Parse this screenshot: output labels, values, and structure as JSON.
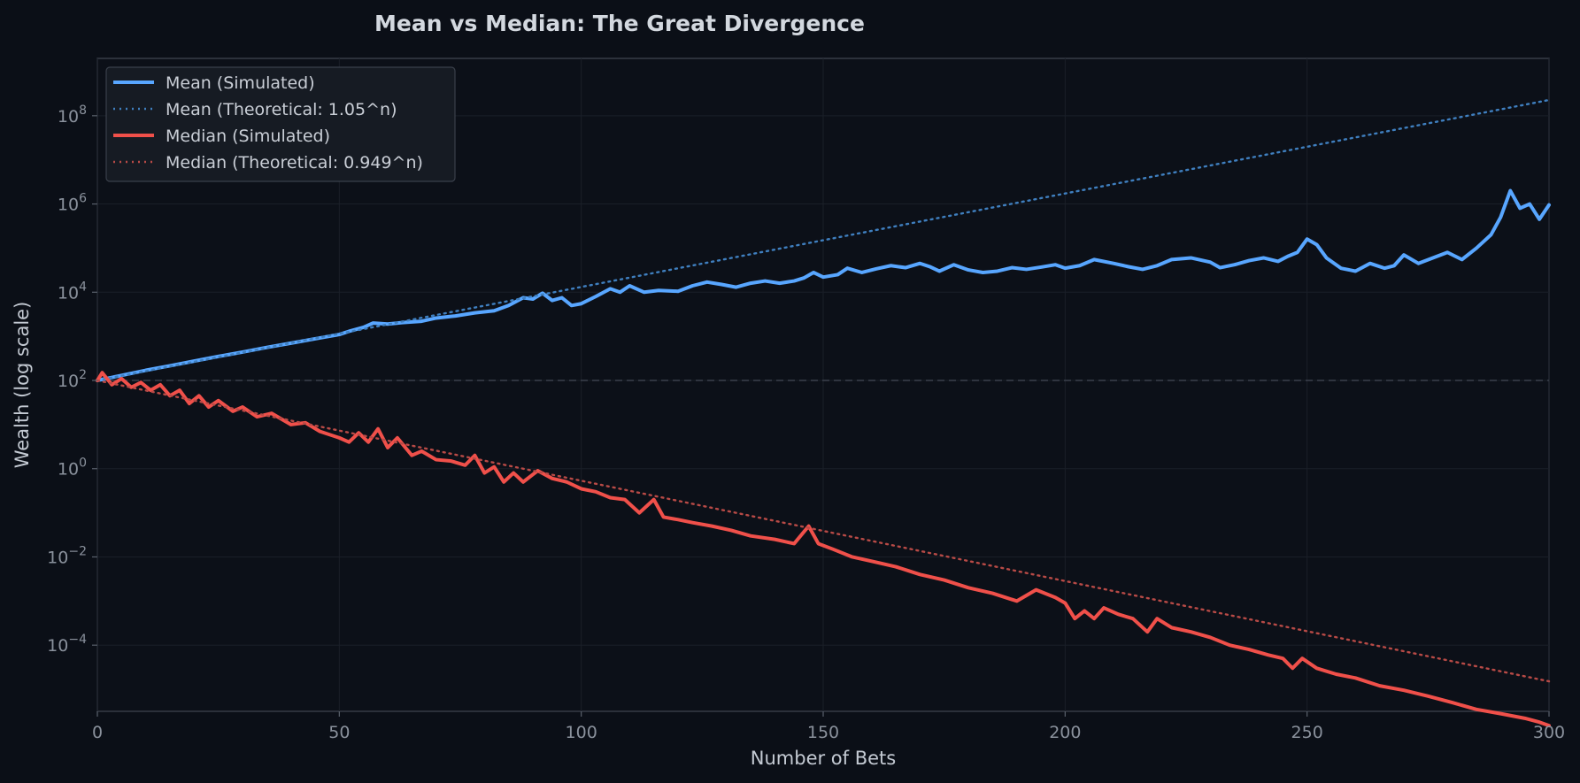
{
  "chart_data": {
    "type": "line",
    "title": "Mean vs Median: The Great Divergence",
    "xlabel": "Number of Bets",
    "ylabel": "Wealth (log scale)",
    "xlim": [
      0,
      300
    ],
    "ylim_log10": [
      -5.5,
      9.3
    ],
    "y_scale": "log",
    "x_ticks": [
      0,
      50,
      100,
      150,
      200,
      250,
      300
    ],
    "y_ticks": [
      {
        "base": "10",
        "exp": "−4",
        "log10": -4
      },
      {
        "base": "10",
        "exp": "−2",
        "log10": -2
      },
      {
        "base": "10",
        "exp": "0",
        "log10": 0
      },
      {
        "base": "10",
        "exp": "2",
        "log10": 2
      },
      {
        "base": "10",
        "exp": "4",
        "log10": 4
      },
      {
        "base": "10",
        "exp": "6",
        "log10": 6
      },
      {
        "base": "10",
        "exp": "8",
        "log10": 8
      }
    ],
    "grid": true,
    "legend_position": "top-left",
    "reference_line": {
      "y": 100,
      "color": "#3b414c",
      "style": "dashed"
    },
    "series": [
      {
        "name": "Mean (Simulated)",
        "color": "#58a6ff",
        "style": "solid",
        "points": [
          [
            0,
            100
          ],
          [
            5,
            130
          ],
          [
            10,
            170
          ],
          [
            15,
            215
          ],
          [
            20,
            275
          ],
          [
            25,
            350
          ],
          [
            30,
            440
          ],
          [
            35,
            560
          ],
          [
            40,
            700
          ],
          [
            45,
            880
          ],
          [
            50,
            1100
          ],
          [
            52,
            1300
          ],
          [
            55,
            1600
          ],
          [
            57,
            2000
          ],
          [
            60,
            1900
          ],
          [
            63,
            2050
          ],
          [
            67,
            2200
          ],
          [
            70,
            2600
          ],
          [
            74,
            2900
          ],
          [
            78,
            3400
          ],
          [
            82,
            3800
          ],
          [
            85,
            5000
          ],
          [
            88,
            7500
          ],
          [
            90,
            7000
          ],
          [
            92,
            9500
          ],
          [
            94,
            6500
          ],
          [
            96,
            7500
          ],
          [
            98,
            5000
          ],
          [
            100,
            5500
          ],
          [
            103,
            8000
          ],
          [
            106,
            12000
          ],
          [
            108,
            10000
          ],
          [
            110,
            14000
          ],
          [
            113,
            10000
          ],
          [
            116,
            11000
          ],
          [
            120,
            10500
          ],
          [
            123,
            14000
          ],
          [
            126,
            17000
          ],
          [
            129,
            15000
          ],
          [
            132,
            13000
          ],
          [
            135,
            16000
          ],
          [
            138,
            18000
          ],
          [
            141,
            16000
          ],
          [
            144,
            18000
          ],
          [
            146,
            21000
          ],
          [
            148,
            28000
          ],
          [
            150,
            22000
          ],
          [
            153,
            25000
          ],
          [
            155,
            35000
          ],
          [
            158,
            28000
          ],
          [
            161,
            34000
          ],
          [
            164,
            40000
          ],
          [
            167,
            36000
          ],
          [
            170,
            45000
          ],
          [
            172,
            38000
          ],
          [
            174,
            30000
          ],
          [
            177,
            42000
          ],
          [
            180,
            32000
          ],
          [
            183,
            28000
          ],
          [
            186,
            30000
          ],
          [
            189,
            36000
          ],
          [
            192,
            33000
          ],
          [
            195,
            37000
          ],
          [
            198,
            42000
          ],
          [
            200,
            35000
          ],
          [
            203,
            40000
          ],
          [
            206,
            55000
          ],
          [
            210,
            45000
          ],
          [
            213,
            38000
          ],
          [
            216,
            33000
          ],
          [
            219,
            40000
          ],
          [
            222,
            55000
          ],
          [
            226,
            60000
          ],
          [
            230,
            48000
          ],
          [
            232,
            36000
          ],
          [
            235,
            42000
          ],
          [
            238,
            52000
          ],
          [
            241,
            60000
          ],
          [
            244,
            50000
          ],
          [
            246,
            65000
          ],
          [
            248,
            80000
          ],
          [
            250,
            160000
          ],
          [
            252,
            120000
          ],
          [
            254,
            60000
          ],
          [
            257,
            35000
          ],
          [
            260,
            30000
          ],
          [
            263,
            45000
          ],
          [
            266,
            35000
          ],
          [
            268,
            40000
          ],
          [
            270,
            70000
          ],
          [
            273,
            45000
          ],
          [
            276,
            60000
          ],
          [
            279,
            80000
          ],
          [
            282,
            55000
          ],
          [
            285,
            100000
          ],
          [
            288,
            200000
          ],
          [
            290,
            500000
          ],
          [
            292,
            2000000
          ],
          [
            294,
            800000
          ],
          [
            296,
            1000000
          ],
          [
            298,
            450000
          ],
          [
            300,
            950000
          ]
        ]
      },
      {
        "name": "Mean (Theoretical: 1.05^n)",
        "color": "#3f7fbf",
        "style": "dotted",
        "rate": 1.05
      },
      {
        "name": "Median (Simulated)",
        "color": "#f0504a",
        "style": "solid",
        "points": [
          [
            0,
            100
          ],
          [
            1,
            150
          ],
          [
            3,
            80
          ],
          [
            5,
            110
          ],
          [
            7,
            70
          ],
          [
            9,
            90
          ],
          [
            11,
            60
          ],
          [
            13,
            80
          ],
          [
            15,
            45
          ],
          [
            17,
            60
          ],
          [
            19,
            30
          ],
          [
            21,
            45
          ],
          [
            23,
            25
          ],
          [
            25,
            35
          ],
          [
            28,
            20
          ],
          [
            30,
            25
          ],
          [
            33,
            15
          ],
          [
            36,
            18
          ],
          [
            40,
            10
          ],
          [
            43,
            11
          ],
          [
            46,
            7
          ],
          [
            50,
            5
          ],
          [
            52,
            4
          ],
          [
            54,
            6.5
          ],
          [
            56,
            4
          ],
          [
            58,
            8
          ],
          [
            60,
            3
          ],
          [
            62,
            5
          ],
          [
            65,
            2
          ],
          [
            67,
            2.5
          ],
          [
            70,
            1.6
          ],
          [
            73,
            1.5
          ],
          [
            76,
            1.2
          ],
          [
            78,
            2
          ],
          [
            80,
            0.8
          ],
          [
            82,
            1.1
          ],
          [
            84,
            0.5
          ],
          [
            86,
            0.8
          ],
          [
            88,
            0.5
          ],
          [
            91,
            0.9
          ],
          [
            94,
            0.6
          ],
          [
            97,
            0.5
          ],
          [
            100,
            0.35
          ],
          [
            103,
            0.3
          ],
          [
            106,
            0.22
          ],
          [
            109,
            0.2
          ],
          [
            112,
            0.1
          ],
          [
            115,
            0.2
          ],
          [
            117,
            0.08
          ],
          [
            120,
            0.07
          ],
          [
            123,
            0.06
          ],
          [
            127,
            0.05
          ],
          [
            131,
            0.04
          ],
          [
            135,
            0.03
          ],
          [
            140,
            0.025
          ],
          [
            144,
            0.02
          ],
          [
            147,
            0.05
          ],
          [
            149,
            0.02
          ],
          [
            152,
            0.015
          ],
          [
            156,
            0.01
          ],
          [
            160,
            0.008
          ],
          [
            165,
            0.006
          ],
          [
            170,
            0.004
          ],
          [
            175,
            0.003
          ],
          [
            180,
            0.002
          ],
          [
            185,
            0.0015
          ],
          [
            190,
            0.001
          ],
          [
            194,
            0.0018
          ],
          [
            198,
            0.0012
          ],
          [
            200,
            0.0009
          ],
          [
            202,
            0.0004
          ],
          [
            204,
            0.0006
          ],
          [
            206,
            0.0004
          ],
          [
            208,
            0.0007
          ],
          [
            211,
            0.0005
          ],
          [
            214,
            0.0004
          ],
          [
            217,
            0.0002
          ],
          [
            219,
            0.0004
          ],
          [
            222,
            0.00025
          ],
          [
            226,
            0.0002
          ],
          [
            230,
            0.00015
          ],
          [
            234,
            0.0001
          ],
          [
            238,
            8e-05
          ],
          [
            242,
            6e-05
          ],
          [
            245,
            5e-05
          ],
          [
            247,
            3e-05
          ],
          [
            249,
            5e-05
          ],
          [
            252,
            3e-05
          ],
          [
            256,
            2.2e-05
          ],
          [
            260,
            1.8e-05
          ],
          [
            265,
            1.2e-05
          ],
          [
            270,
            9.5e-06
          ],
          [
            275,
            7e-06
          ],
          [
            280,
            5e-06
          ],
          [
            285,
            3.5e-06
          ],
          [
            290,
            2.8e-06
          ],
          [
            295,
            2.2e-06
          ],
          [
            298,
            1.8e-06
          ],
          [
            300,
            1.5e-06
          ]
        ]
      },
      {
        "name": "Median (Theoretical: 0.949^n)",
        "color": "#b84a46",
        "style": "dotted",
        "rate": 0.949
      }
    ]
  }
}
